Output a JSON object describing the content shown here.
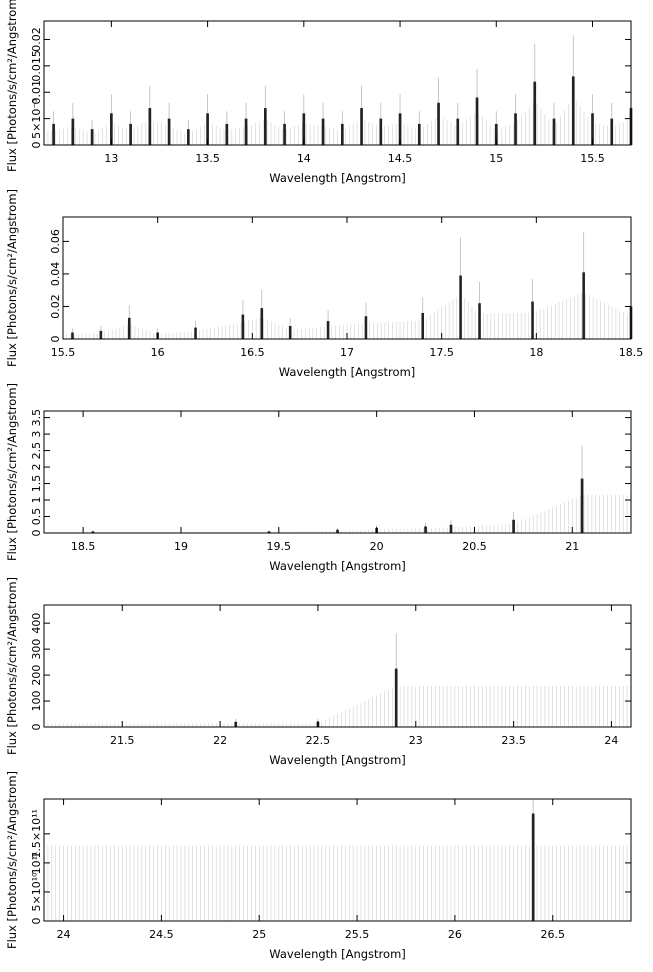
{
  "chart_data": [
    {
      "type": "line",
      "xlabel": "Wavelength [Angstrom]",
      "ylabel": "Flux [Photons/s/cm²/Angstrom]",
      "xlim": [
        12.65,
        15.7
      ],
      "ylim": [
        0,
        0.0235
      ],
      "xticks": [
        13,
        13.5,
        14,
        14.5,
        15,
        15.5
      ],
      "xtick_labels": [
        "13",
        "13.5",
        "14",
        "14.5",
        "15",
        "15.5"
      ],
      "yticks": [
        0,
        0.005,
        0.01,
        0.015,
        0.02
      ],
      "ytick_labels": [
        "0",
        "5×10⁻³",
        "0.01",
        "0.015",
        "0.02"
      ],
      "series": [
        {
          "x": [
            12.7,
            12.8,
            12.9,
            13.0,
            13.1,
            13.2,
            13.3,
            13.4,
            13.5,
            13.6,
            13.7,
            13.8,
            13.9,
            14.0,
            14.1,
            14.2,
            14.3,
            14.4,
            14.5,
            14.6,
            14.7,
            14.8,
            14.9,
            15.0,
            15.1,
            15.2,
            15.3,
            15.4,
            15.5,
            15.6,
            15.7
          ],
          "values": [
            0.004,
            0.005,
            0.003,
            0.006,
            0.004,
            0.007,
            0.005,
            0.003,
            0.006,
            0.004,
            0.005,
            0.007,
            0.004,
            0.006,
            0.005,
            0.004,
            0.007,
            0.005,
            0.006,
            0.004,
            0.008,
            0.005,
            0.009,
            0.004,
            0.006,
            0.012,
            0.005,
            0.013,
            0.006,
            0.005,
            0.007
          ]
        }
      ]
    },
    {
      "type": "line",
      "xlabel": "Wavelength [Angstrom]",
      "ylabel": "Flux [Photons/s/cm²/Angstrom]",
      "xlim": [
        15.5,
        18.5
      ],
      "ylim": [
        0,
        0.075
      ],
      "xticks": [
        15.5,
        16,
        16.5,
        17,
        17.5,
        18,
        18.5
      ],
      "xtick_labels": [
        "15.5",
        "16",
        "16.5",
        "17",
        "17.5",
        "18",
        "18.5"
      ],
      "yticks": [
        0,
        0.02,
        0.04,
        0.06
      ],
      "ytick_labels": [
        "0",
        "0.02",
        "0.04",
        "0.06"
      ],
      "series": [
        {
          "x": [
            15.55,
            15.7,
            15.85,
            16.0,
            16.2,
            16.45,
            16.55,
            16.7,
            16.9,
            17.1,
            17.4,
            17.6,
            17.7,
            17.98,
            18.25,
            18.5
          ],
          "values": [
            0.004,
            0.005,
            0.013,
            0.004,
            0.007,
            0.015,
            0.019,
            0.008,
            0.011,
            0.014,
            0.016,
            0.039,
            0.022,
            0.023,
            0.041,
            0.02
          ]
        }
      ]
    },
    {
      "type": "line",
      "xlabel": "Wavelength [Angstrom]",
      "ylabel": "Flux [Photons/s/cm²/Angstrom]",
      "xlim": [
        18.3,
        21.3
      ],
      "ylim": [
        0,
        3.7
      ],
      "xticks": [
        18.5,
        19,
        19.5,
        20,
        20.5,
        21
      ],
      "xtick_labels": [
        "18.5",
        "19",
        "19.5",
        "20",
        "20.5",
        "21"
      ],
      "yticks": [
        0,
        0.5,
        1,
        1.5,
        2,
        2.5,
        3,
        3.5
      ],
      "ytick_labels": [
        "0",
        "0.5",
        "1",
        "1.5",
        "2",
        "2.5",
        "3",
        "3.5"
      ],
      "series": [
        {
          "x": [
            18.55,
            19.45,
            19.8,
            20.0,
            20.25,
            20.38,
            20.7,
            21.05
          ],
          "values": [
            0.05,
            0.05,
            0.1,
            0.15,
            0.2,
            0.25,
            0.4,
            1.65
          ]
        }
      ]
    },
    {
      "type": "line",
      "xlabel": "Wavelength [Angstrom]",
      "ylabel": "Flux [Photons/s/cm²/Angstrom]",
      "xlim": [
        21.1,
        24.1
      ],
      "ylim": [
        0,
        470
      ],
      "xticks": [
        21.5,
        22,
        22.5,
        23,
        23.5,
        24
      ],
      "xtick_labels": [
        "21.5",
        "22",
        "22.5",
        "23",
        "23.5",
        "24"
      ],
      "yticks": [
        0,
        100,
        200,
        300,
        400
      ],
      "ytick_labels": [
        "0",
        "100",
        "200",
        "300",
        "400"
      ],
      "series": [
        {
          "x": [
            22.08,
            22.5,
            22.9
          ],
          "values": [
            20,
            20,
            225
          ]
        }
      ]
    },
    {
      "type": "line",
      "xlabel": "Wavelength [Angstrom]",
      "ylabel": "Flux [Photons/s/cm²/Angstrom]",
      "xlim": [
        23.9,
        26.9
      ],
      "ylim": [
        0,
        210000000000.0
      ],
      "xticks": [
        24,
        24.5,
        25,
        25.5,
        26,
        26.5
      ],
      "xtick_labels": [
        "24",
        "24.5",
        "25",
        "25.5",
        "26",
        "26.5"
      ],
      "yticks": [
        0,
        50000000000.0,
        100000000000.0,
        150000000000.0
      ],
      "ytick_labels": [
        "0",
        "5×10¹⁰",
        "10¹¹",
        "1.5×10¹¹"
      ],
      "series": [
        {
          "x": [
            26.4
          ],
          "values": [
            185000000000.0
          ]
        }
      ]
    }
  ]
}
